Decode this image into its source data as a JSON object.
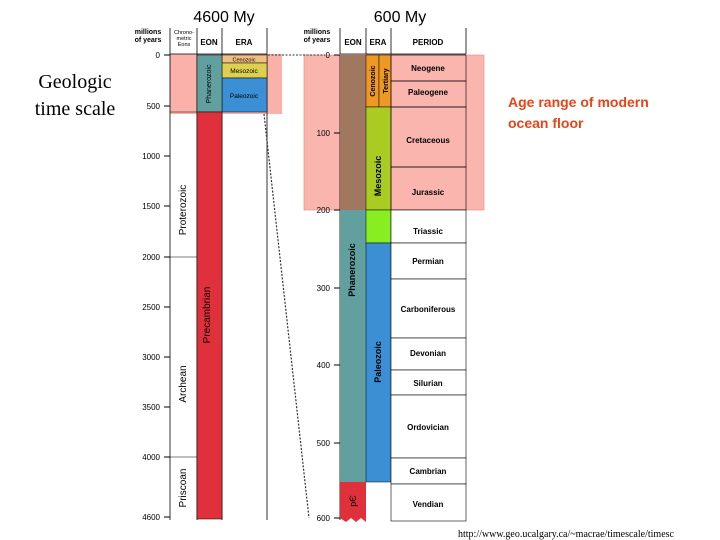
{
  "slide": {
    "title_left": "4600 My",
    "title_right": "600 My",
    "side_title_line1": "Geologic",
    "side_title_line2": "time scale",
    "note_line1": "Age range of modern",
    "note_line2": "ocean floor",
    "source_url": "http://www.geo.ucalgary.ca/~macrae/timescale/timesc"
  },
  "colors": {
    "ocean_highlight": "#f9a9a0",
    "precambrian": "#e0303c",
    "phanerozoic": "#62a0a0",
    "paleozoic": "#3b8fd4",
    "mesozoic": "#aacc22",
    "triassic": "#88ee22",
    "cenozoic": "#a07860",
    "tertiary": "#ee9922",
    "cenozoic_small": "#f0c080",
    "mesozoic_small": "#ddd050"
  },
  "left_scale": {
    "header_age": "millions of years",
    "header_chrono": "Chrono- metric Eons",
    "header_eon": "EON",
    "header_era": "ERA",
    "ticks": [
      "0",
      "500",
      "1000",
      "1500",
      "2000",
      "2500",
      "3000",
      "3500",
      "4000",
      "4600"
    ],
    "chrono_eons": [
      "Priscoan",
      "Archean",
      "Proterozoic"
    ],
    "eons": [
      "Phanerozoic",
      "Precambrian"
    ],
    "eras": [
      "Cenozoic",
      "Mesozoic",
      "Paleozoic"
    ]
  },
  "right_scale": {
    "header_age": "millions of years",
    "header_eon": "EON",
    "header_era": "ERA",
    "header_period": "PERIOD",
    "ticks": [
      "0",
      "100",
      "200",
      "300",
      "400",
      "500",
      "600"
    ],
    "eons": [
      "Phanerozoic",
      "pЄ"
    ],
    "eras": [
      "Cenozoic",
      "Mesozoic",
      "Paleozoic"
    ],
    "subera": "Tertiary",
    "periods": [
      "Neogene",
      "Paleogene",
      "Cretaceous",
      "Jurassic",
      "Triassic",
      "Permian",
      "Carboniferous",
      "Devonian",
      "Silurian",
      "Ordovician",
      "Cambrian",
      "Vendian"
    ]
  }
}
